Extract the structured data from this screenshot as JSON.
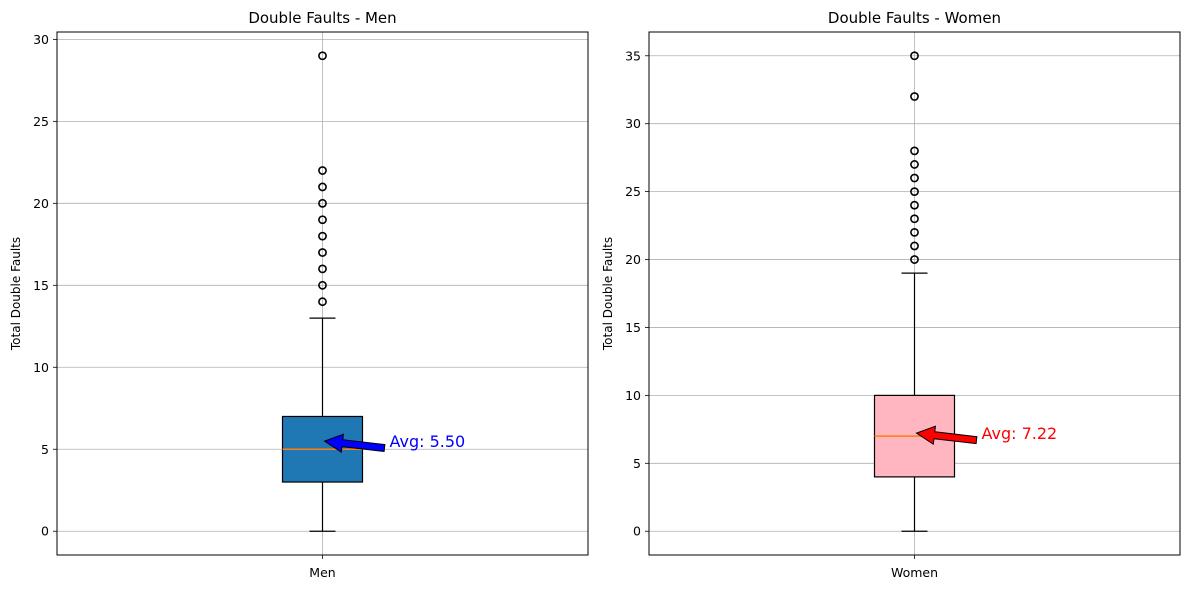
{
  "colors": {
    "men_box": "#1f77b4",
    "women_box": "#ffb6c1",
    "median": "#ff7f0e",
    "men_annotation": "#0000ff",
    "women_annotation": "#ff0000",
    "grid": "#b0b0b0"
  },
  "chart_data": [
    {
      "type": "box",
      "title": "Double Faults - Men",
      "xlabel": "",
      "ylabel": "Total Double Faults",
      "categories": [
        "Men"
      ],
      "ylim": [
        -1.45,
        30.45
      ],
      "yticks": [
        0,
        5,
        10,
        15,
        20,
        25,
        30
      ],
      "grid": true,
      "box": {
        "whisker_low": 0,
        "q1": 3,
        "median": 5,
        "q3": 7,
        "whisker_high": 13
      },
      "outliers": [
        14,
        15,
        16,
        17,
        18,
        19,
        20,
        21,
        22,
        29
      ],
      "annotation": {
        "text": "Avg: 5.50",
        "value": 5.5
      },
      "box_color": "#1f77b4",
      "annotation_color": "#0000ff"
    },
    {
      "type": "box",
      "title": "Double Faults - Women",
      "xlabel": "",
      "ylabel": "Total Double Faults",
      "categories": [
        "Women"
      ],
      "ylim": [
        -1.75,
        36.75
      ],
      "yticks": [
        0,
        5,
        10,
        15,
        20,
        25,
        30,
        35
      ],
      "grid": true,
      "box": {
        "whisker_low": 0,
        "q1": 4,
        "median": 7,
        "q3": 10,
        "whisker_high": 19
      },
      "outliers": [
        20,
        21,
        22,
        23,
        24,
        25,
        26,
        27,
        28,
        32,
        35
      ],
      "annotation": {
        "text": "Avg: 7.22",
        "value": 7.22
      },
      "box_color": "#ffb6c1",
      "annotation_color": "#ff0000"
    }
  ]
}
